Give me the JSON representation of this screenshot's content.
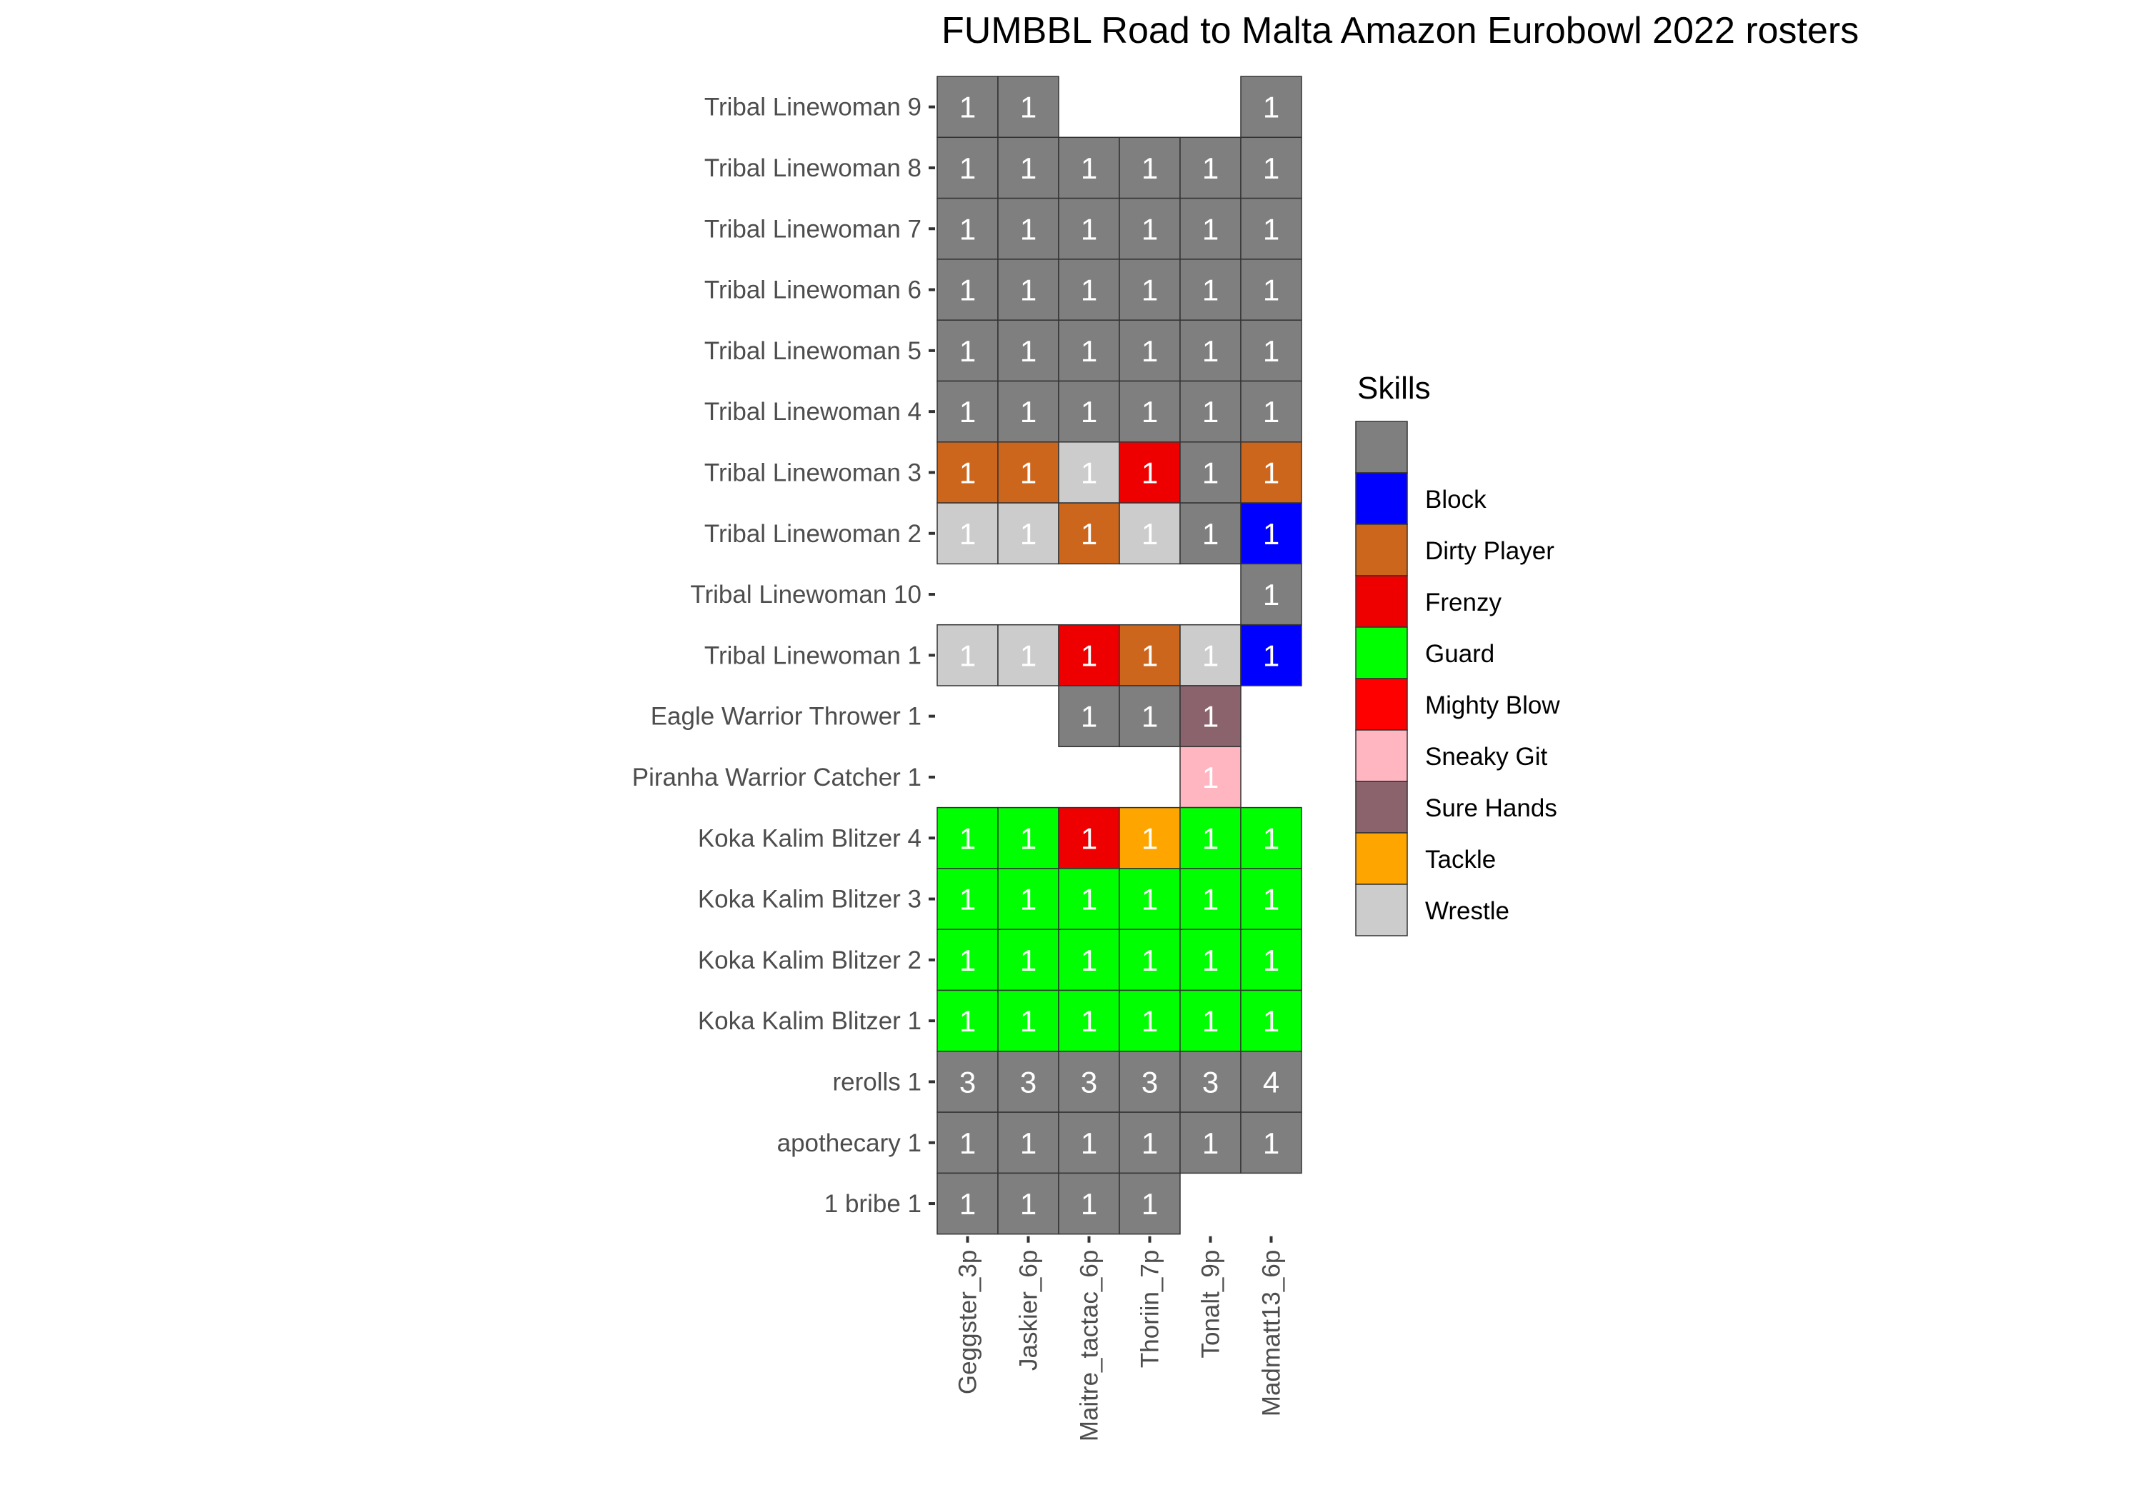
{
  "chart_data": {
    "type": "heatmap",
    "title": "FUMBBL Road to Malta Amazon Eurobowl 2022 rosters",
    "xlabel": "",
    "ylabel": "",
    "columns": [
      "Geggster_3p",
      "Jaskier_6p",
      "Maitre_tactac_6p",
      "Thoriin_7p",
      "Tonalt_9p",
      "Madmatt13_6p"
    ],
    "rows": [
      "Tribal Linewoman 9",
      "Tribal Linewoman 8",
      "Tribal Linewoman 7",
      "Tribal Linewoman 6",
      "Tribal Linewoman 5",
      "Tribal Linewoman 4",
      "Tribal Linewoman 3",
      "Tribal Linewoman 2",
      "Tribal Linewoman 10",
      "Tribal Linewoman 1",
      "Eagle Warrior Thrower 1",
      "Piranha Warrior Catcher 1",
      "Koka Kalim Blitzer 4",
      "Koka Kalim Blitzer 3",
      "Koka Kalim Blitzer 2",
      "Koka Kalim Blitzer 1",
      "rerolls 1",
      "apothecary 1",
      "1 bribe 1"
    ],
    "legend": {
      "title": "Skills",
      "position": "right",
      "items": [
        {
          "label": "",
          "color": "#7f7f7f"
        },
        {
          "label": "Block",
          "color": "#0000ff"
        },
        {
          "label": "Dirty Player",
          "color": "#cd661d"
        },
        {
          "label": "Frenzy",
          "color": "#ee0000"
        },
        {
          "label": "Guard",
          "color": "#00ff00"
        },
        {
          "label": "Mighty Blow",
          "color": "#ff0000"
        },
        {
          "label": "Sneaky Git",
          "color": "#ffb6c1"
        },
        {
          "label": "Sure Hands",
          "color": "#8b636c"
        },
        {
          "label": "Tackle",
          "color": "#ffa500"
        },
        {
          "label": "Wrestle",
          "color": "#cccccc"
        }
      ]
    },
    "cells": [
      {
        "row": "Tribal Linewoman 9",
        "col": "Geggster_3p",
        "value": 1,
        "skill": ""
      },
      {
        "row": "Tribal Linewoman 9",
        "col": "Jaskier_6p",
        "value": 1,
        "skill": ""
      },
      {
        "row": "Tribal Linewoman 9",
        "col": "Madmatt13_6p",
        "value": 1,
        "skill": ""
      },
      {
        "row": "Tribal Linewoman 8",
        "col": "Geggster_3p",
        "value": 1,
        "skill": ""
      },
      {
        "row": "Tribal Linewoman 8",
        "col": "Jaskier_6p",
        "value": 1,
        "skill": ""
      },
      {
        "row": "Tribal Linewoman 8",
        "col": "Maitre_tactac_6p",
        "value": 1,
        "skill": ""
      },
      {
        "row": "Tribal Linewoman 8",
        "col": "Thoriin_7p",
        "value": 1,
        "skill": ""
      },
      {
        "row": "Tribal Linewoman 8",
        "col": "Tonalt_9p",
        "value": 1,
        "skill": ""
      },
      {
        "row": "Tribal Linewoman 8",
        "col": "Madmatt13_6p",
        "value": 1,
        "skill": ""
      },
      {
        "row": "Tribal Linewoman 7",
        "col": "Geggster_3p",
        "value": 1,
        "skill": ""
      },
      {
        "row": "Tribal Linewoman 7",
        "col": "Jaskier_6p",
        "value": 1,
        "skill": ""
      },
      {
        "row": "Tribal Linewoman 7",
        "col": "Maitre_tactac_6p",
        "value": 1,
        "skill": ""
      },
      {
        "row": "Tribal Linewoman 7",
        "col": "Thoriin_7p",
        "value": 1,
        "skill": ""
      },
      {
        "row": "Tribal Linewoman 7",
        "col": "Tonalt_9p",
        "value": 1,
        "skill": ""
      },
      {
        "row": "Tribal Linewoman 7",
        "col": "Madmatt13_6p",
        "value": 1,
        "skill": ""
      },
      {
        "row": "Tribal Linewoman 6",
        "col": "Geggster_3p",
        "value": 1,
        "skill": ""
      },
      {
        "row": "Tribal Linewoman 6",
        "col": "Jaskier_6p",
        "value": 1,
        "skill": ""
      },
      {
        "row": "Tribal Linewoman 6",
        "col": "Maitre_tactac_6p",
        "value": 1,
        "skill": ""
      },
      {
        "row": "Tribal Linewoman 6",
        "col": "Thoriin_7p",
        "value": 1,
        "skill": ""
      },
      {
        "row": "Tribal Linewoman 6",
        "col": "Tonalt_9p",
        "value": 1,
        "skill": ""
      },
      {
        "row": "Tribal Linewoman 6",
        "col": "Madmatt13_6p",
        "value": 1,
        "skill": ""
      },
      {
        "row": "Tribal Linewoman 5",
        "col": "Geggster_3p",
        "value": 1,
        "skill": ""
      },
      {
        "row": "Tribal Linewoman 5",
        "col": "Jaskier_6p",
        "value": 1,
        "skill": ""
      },
      {
        "row": "Tribal Linewoman 5",
        "col": "Maitre_tactac_6p",
        "value": 1,
        "skill": ""
      },
      {
        "row": "Tribal Linewoman 5",
        "col": "Thoriin_7p",
        "value": 1,
        "skill": ""
      },
      {
        "row": "Tribal Linewoman 5",
        "col": "Tonalt_9p",
        "value": 1,
        "skill": ""
      },
      {
        "row": "Tribal Linewoman 5",
        "col": "Madmatt13_6p",
        "value": 1,
        "skill": ""
      },
      {
        "row": "Tribal Linewoman 4",
        "col": "Geggster_3p",
        "value": 1,
        "skill": ""
      },
      {
        "row": "Tribal Linewoman 4",
        "col": "Jaskier_6p",
        "value": 1,
        "skill": ""
      },
      {
        "row": "Tribal Linewoman 4",
        "col": "Maitre_tactac_6p",
        "value": 1,
        "skill": ""
      },
      {
        "row": "Tribal Linewoman 4",
        "col": "Thoriin_7p",
        "value": 1,
        "skill": ""
      },
      {
        "row": "Tribal Linewoman 4",
        "col": "Tonalt_9p",
        "value": 1,
        "skill": ""
      },
      {
        "row": "Tribal Linewoman 4",
        "col": "Madmatt13_6p",
        "value": 1,
        "skill": ""
      },
      {
        "row": "Tribal Linewoman 3",
        "col": "Geggster_3p",
        "value": 1,
        "skill": "Dirty Player"
      },
      {
        "row": "Tribal Linewoman 3",
        "col": "Jaskier_6p",
        "value": 1,
        "skill": "Dirty Player"
      },
      {
        "row": "Tribal Linewoman 3",
        "col": "Maitre_tactac_6p",
        "value": 1,
        "skill": "Wrestle"
      },
      {
        "row": "Tribal Linewoman 3",
        "col": "Thoriin_7p",
        "value": 1,
        "skill": "Frenzy"
      },
      {
        "row": "Tribal Linewoman 3",
        "col": "Tonalt_9p",
        "value": 1,
        "skill": ""
      },
      {
        "row": "Tribal Linewoman 3",
        "col": "Madmatt13_6p",
        "value": 1,
        "skill": "Dirty Player"
      },
      {
        "row": "Tribal Linewoman 2",
        "col": "Geggster_3p",
        "value": 1,
        "skill": "Wrestle"
      },
      {
        "row": "Tribal Linewoman 2",
        "col": "Jaskier_6p",
        "value": 1,
        "skill": "Wrestle"
      },
      {
        "row": "Tribal Linewoman 2",
        "col": "Maitre_tactac_6p",
        "value": 1,
        "skill": "Dirty Player"
      },
      {
        "row": "Tribal Linewoman 2",
        "col": "Thoriin_7p",
        "value": 1,
        "skill": "Wrestle"
      },
      {
        "row": "Tribal Linewoman 2",
        "col": "Tonalt_9p",
        "value": 1,
        "skill": ""
      },
      {
        "row": "Tribal Linewoman 2",
        "col": "Madmatt13_6p",
        "value": 1,
        "skill": "Block"
      },
      {
        "row": "Tribal Linewoman 10",
        "col": "Madmatt13_6p",
        "value": 1,
        "skill": ""
      },
      {
        "row": "Tribal Linewoman 1",
        "col": "Geggster_3p",
        "value": 1,
        "skill": "Wrestle"
      },
      {
        "row": "Tribal Linewoman 1",
        "col": "Jaskier_6p",
        "value": 1,
        "skill": "Wrestle"
      },
      {
        "row": "Tribal Linewoman 1",
        "col": "Maitre_tactac_6p",
        "value": 1,
        "skill": "Frenzy"
      },
      {
        "row": "Tribal Linewoman 1",
        "col": "Thoriin_7p",
        "value": 1,
        "skill": "Dirty Player"
      },
      {
        "row": "Tribal Linewoman 1",
        "col": "Tonalt_9p",
        "value": 1,
        "skill": "Wrestle"
      },
      {
        "row": "Tribal Linewoman 1",
        "col": "Madmatt13_6p",
        "value": 1,
        "skill": "Block"
      },
      {
        "row": "Eagle Warrior Thrower 1",
        "col": "Maitre_tactac_6p",
        "value": 1,
        "skill": ""
      },
      {
        "row": "Eagle Warrior Thrower 1",
        "col": "Thoriin_7p",
        "value": 1,
        "skill": ""
      },
      {
        "row": "Eagle Warrior Thrower 1",
        "col": "Tonalt_9p",
        "value": 1,
        "skill": "Sure Hands"
      },
      {
        "row": "Piranha Warrior Catcher 1",
        "col": "Tonalt_9p",
        "value": 1,
        "skill": "Sneaky Git"
      },
      {
        "row": "Koka Kalim Blitzer 4",
        "col": "Geggster_3p",
        "value": 1,
        "skill": "Guard"
      },
      {
        "row": "Koka Kalim Blitzer 4",
        "col": "Jaskier_6p",
        "value": 1,
        "skill": "Guard"
      },
      {
        "row": "Koka Kalim Blitzer 4",
        "col": "Maitre_tactac_6p",
        "value": 1,
        "skill": "Frenzy"
      },
      {
        "row": "Koka Kalim Blitzer 4",
        "col": "Thoriin_7p",
        "value": 1,
        "skill": "Tackle"
      },
      {
        "row": "Koka Kalim Blitzer 4",
        "col": "Tonalt_9p",
        "value": 1,
        "skill": "Guard"
      },
      {
        "row": "Koka Kalim Blitzer 4",
        "col": "Madmatt13_6p",
        "value": 1,
        "skill": "Guard"
      },
      {
        "row": "Koka Kalim Blitzer 3",
        "col": "Geggster_3p",
        "value": 1,
        "skill": "Guard"
      },
      {
        "row": "Koka Kalim Blitzer 3",
        "col": "Jaskier_6p",
        "value": 1,
        "skill": "Guard"
      },
      {
        "row": "Koka Kalim Blitzer 3",
        "col": "Maitre_tactac_6p",
        "value": 1,
        "skill": "Guard"
      },
      {
        "row": "Koka Kalim Blitzer 3",
        "col": "Thoriin_7p",
        "value": 1,
        "skill": "Guard"
      },
      {
        "row": "Koka Kalim Blitzer 3",
        "col": "Tonalt_9p",
        "value": 1,
        "skill": "Guard"
      },
      {
        "row": "Koka Kalim Blitzer 3",
        "col": "Madmatt13_6p",
        "value": 1,
        "skill": "Guard"
      },
      {
        "row": "Koka Kalim Blitzer 2",
        "col": "Geggster_3p",
        "value": 1,
        "skill": "Guard"
      },
      {
        "row": "Koka Kalim Blitzer 2",
        "col": "Jaskier_6p",
        "value": 1,
        "skill": "Guard"
      },
      {
        "row": "Koka Kalim Blitzer 2",
        "col": "Maitre_tactac_6p",
        "value": 1,
        "skill": "Guard"
      },
      {
        "row": "Koka Kalim Blitzer 2",
        "col": "Thoriin_7p",
        "value": 1,
        "skill": "Guard"
      },
      {
        "row": "Koka Kalim Blitzer 2",
        "col": "Tonalt_9p",
        "value": 1,
        "skill": "Guard"
      },
      {
        "row": "Koka Kalim Blitzer 2",
        "col": "Madmatt13_6p",
        "value": 1,
        "skill": "Guard"
      },
      {
        "row": "Koka Kalim Blitzer 1",
        "col": "Geggster_3p",
        "value": 1,
        "skill": "Guard"
      },
      {
        "row": "Koka Kalim Blitzer 1",
        "col": "Jaskier_6p",
        "value": 1,
        "skill": "Guard"
      },
      {
        "row": "Koka Kalim Blitzer 1",
        "col": "Maitre_tactac_6p",
        "value": 1,
        "skill": "Guard"
      },
      {
        "row": "Koka Kalim Blitzer 1",
        "col": "Thoriin_7p",
        "value": 1,
        "skill": "Guard"
      },
      {
        "row": "Koka Kalim Blitzer 1",
        "col": "Tonalt_9p",
        "value": 1,
        "skill": "Guard"
      },
      {
        "row": "Koka Kalim Blitzer 1",
        "col": "Madmatt13_6p",
        "value": 1,
        "skill": "Guard"
      },
      {
        "row": "rerolls 1",
        "col": "Geggster_3p",
        "value": 3,
        "skill": ""
      },
      {
        "row": "rerolls 1",
        "col": "Jaskier_6p",
        "value": 3,
        "skill": ""
      },
      {
        "row": "rerolls 1",
        "col": "Maitre_tactac_6p",
        "value": 3,
        "skill": ""
      },
      {
        "row": "rerolls 1",
        "col": "Thoriin_7p",
        "value": 3,
        "skill": ""
      },
      {
        "row": "rerolls 1",
        "col": "Tonalt_9p",
        "value": 3,
        "skill": ""
      },
      {
        "row": "rerolls 1",
        "col": "Madmatt13_6p",
        "value": 4,
        "skill": ""
      },
      {
        "row": "apothecary 1",
        "col": "Geggster_3p",
        "value": 1,
        "skill": ""
      },
      {
        "row": "apothecary 1",
        "col": "Jaskier_6p",
        "value": 1,
        "skill": ""
      },
      {
        "row": "apothecary 1",
        "col": "Maitre_tactac_6p",
        "value": 1,
        "skill": ""
      },
      {
        "row": "apothecary 1",
        "col": "Thoriin_7p",
        "value": 1,
        "skill": ""
      },
      {
        "row": "apothecary 1",
        "col": "Tonalt_9p",
        "value": 1,
        "skill": ""
      },
      {
        "row": "apothecary 1",
        "col": "Madmatt13_6p",
        "value": 1,
        "skill": ""
      },
      {
        "row": "1 bribe 1",
        "col": "Geggster_3p",
        "value": 1,
        "skill": ""
      },
      {
        "row": "1 bribe 1",
        "col": "Jaskier_6p",
        "value": 1,
        "skill": ""
      },
      {
        "row": "1 bribe 1",
        "col": "Maitre_tactac_6p",
        "value": 1,
        "skill": ""
      },
      {
        "row": "1 bribe 1",
        "col": "Thoriin_7p",
        "value": 1,
        "skill": ""
      }
    ]
  }
}
